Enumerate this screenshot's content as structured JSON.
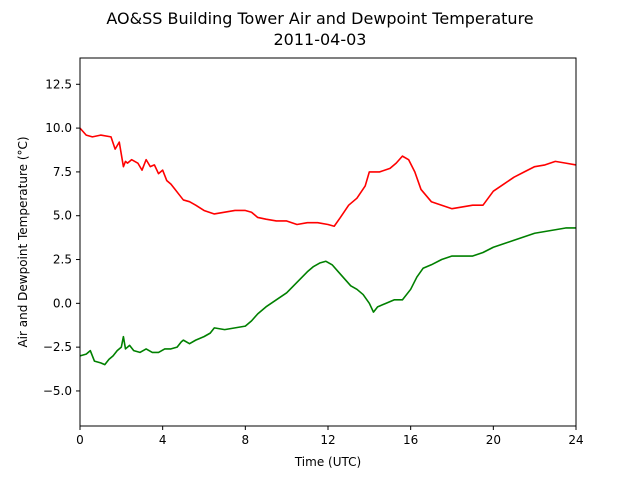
{
  "chart_data": {
    "type": "line",
    "title": "AO&SS Building Tower Air and Dewpoint Temperature",
    "subtitle": "2011-04-03",
    "xlabel": "Time (UTC)",
    "ylabel": "Air and Dewpoint Temperature (°C)",
    "xlim": [
      0,
      24
    ],
    "ylim": [
      -7,
      14
    ],
    "xticks": [
      0,
      4,
      8,
      12,
      16,
      20,
      24
    ],
    "xtick_labels": [
      "0",
      "4",
      "8",
      "12",
      "16",
      "20",
      "24"
    ],
    "yticks": [
      -5,
      -2.5,
      0,
      2.5,
      5,
      7.5,
      10,
      12.5
    ],
    "ytick_labels": [
      "−5.0",
      "−2.5",
      "0.0",
      "2.5",
      "5.0",
      "7.5",
      "10.0",
      "12.5"
    ],
    "grid": false,
    "legend": "none",
    "series": [
      {
        "color": "#ff0000",
        "x": [
          0,
          0.3,
          0.6,
          1.0,
          1.5,
          1.7,
          1.9,
          2.1,
          2.2,
          2.3,
          2.5,
          2.8,
          3.0,
          3.2,
          3.4,
          3.6,
          3.8,
          4.0,
          4.2,
          4.4,
          4.6,
          4.8,
          5.0,
          5.3,
          5.6,
          6.0,
          6.5,
          7.0,
          7.5,
          8.0,
          8.3,
          8.6,
          9.0,
          9.5,
          10.0,
          10.5,
          11.0,
          11.5,
          12.0,
          12.3,
          12.6,
          13.0,
          13.4,
          13.8,
          14.0,
          14.2,
          14.5,
          15.0,
          15.3,
          15.6,
          15.9,
          16.2,
          16.5,
          17.0,
          17.5,
          18.0,
          18.5,
          19.0,
          19.5,
          20.0,
          20.5,
          21.0,
          21.5,
          22.0,
          22.5,
          23.0,
          23.5,
          24.0
        ],
        "y": [
          10.0,
          9.6,
          9.5,
          9.6,
          9.5,
          8.8,
          9.2,
          7.8,
          8.1,
          8.0,
          8.2,
          8.0,
          7.6,
          8.2,
          7.8,
          7.9,
          7.4,
          7.6,
          7.0,
          6.8,
          6.5,
          6.2,
          5.9,
          5.8,
          5.6,
          5.3,
          5.1,
          5.2,
          5.3,
          5.3,
          5.2,
          4.9,
          4.8,
          4.7,
          4.7,
          4.5,
          4.6,
          4.6,
          4.5,
          4.4,
          4.9,
          5.6,
          6.0,
          6.7,
          7.5,
          7.5,
          7.5,
          7.7,
          8.0,
          8.4,
          8.2,
          7.5,
          6.5,
          5.8,
          5.6,
          5.4,
          5.5,
          5.6,
          5.6,
          6.4,
          6.8,
          7.2,
          7.5,
          7.8,
          7.9,
          8.1,
          8.0,
          7.9
        ]
      },
      {
        "color": "#008000",
        "x": [
          0,
          0.3,
          0.5,
          0.7,
          1.0,
          1.2,
          1.4,
          1.6,
          1.8,
          2.0,
          2.1,
          2.2,
          2.4,
          2.6,
          2.9,
          3.2,
          3.5,
          3.8,
          4.1,
          4.4,
          4.7,
          4.9,
          5.0,
          5.3,
          5.6,
          6.0,
          6.3,
          6.5,
          7.0,
          7.5,
          8.0,
          8.3,
          8.6,
          9.0,
          9.5,
          10.0,
          10.5,
          11.0,
          11.3,
          11.6,
          11.9,
          12.2,
          12.5,
          12.8,
          13.1,
          13.4,
          13.7,
          14.0,
          14.2,
          14.4,
          14.8,
          15.2,
          15.6,
          16.0,
          16.3,
          16.6,
          17.0,
          17.5,
          18.0,
          18.5,
          19.0,
          19.5,
          20.0,
          20.5,
          21.0,
          21.5,
          22.0,
          22.5,
          23.0,
          23.5,
          24.0
        ],
        "y": [
          -3.0,
          -2.9,
          -2.7,
          -3.3,
          -3.4,
          -3.5,
          -3.2,
          -3.0,
          -2.7,
          -2.5,
          -1.9,
          -2.6,
          -2.4,
          -2.7,
          -2.8,
          -2.6,
          -2.8,
          -2.8,
          -2.6,
          -2.6,
          -2.5,
          -2.2,
          -2.1,
          -2.3,
          -2.1,
          -1.9,
          -1.7,
          -1.4,
          -1.5,
          -1.4,
          -1.3,
          -1.0,
          -0.6,
          -0.2,
          0.2,
          0.6,
          1.2,
          1.8,
          2.1,
          2.3,
          2.4,
          2.2,
          1.8,
          1.4,
          1.0,
          0.8,
          0.5,
          0.0,
          -0.5,
          -0.2,
          0.0,
          0.2,
          0.2,
          0.8,
          1.5,
          2.0,
          2.2,
          2.5,
          2.7,
          2.7,
          2.7,
          2.9,
          3.2,
          3.4,
          3.6,
          3.8,
          4.0,
          4.1,
          4.2,
          4.3,
          4.3
        ]
      }
    ]
  }
}
